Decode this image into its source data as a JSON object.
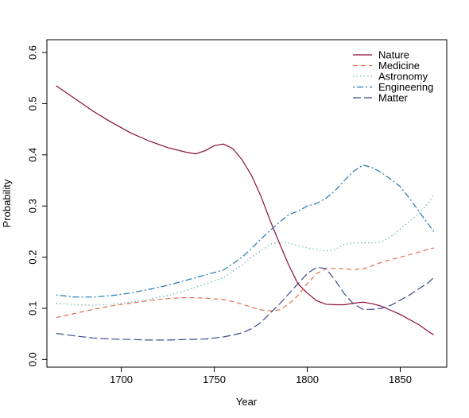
{
  "chart_data": {
    "type": "line",
    "title": "",
    "xlabel": "Year",
    "ylabel": "Probability",
    "xlim": [
      1660,
      1875
    ],
    "ylim": [
      -0.015,
      0.625
    ],
    "x_ticks": [
      1700,
      1750,
      1800,
      1850
    ],
    "y_ticks": [
      0.0,
      0.1,
      0.2,
      0.3,
      0.4,
      0.5,
      0.6
    ],
    "x_tick_labels": [
      "1700",
      "1750",
      "1800",
      "1850"
    ],
    "y_tick_labels": [
      "0.0",
      "0.1",
      "0.2",
      "0.3",
      "0.4",
      "0.5",
      "0.6"
    ],
    "grid": false,
    "legend_position": "top-right",
    "series": [
      {
        "name": "Nature",
        "color": "#8b0a3c",
        "dash": "solid",
        "x": [
          1665,
          1675,
          1685,
          1695,
          1705,
          1715,
          1725,
          1735,
          1740,
          1745,
          1750,
          1755,
          1760,
          1765,
          1770,
          1775,
          1780,
          1785,
          1790,
          1795,
          1800,
          1805,
          1810,
          1815,
          1820,
          1825,
          1830,
          1835,
          1840,
          1845,
          1850,
          1855,
          1860,
          1865,
          1868
        ],
        "y": [
          0.535,
          0.51,
          0.485,
          0.463,
          0.443,
          0.427,
          0.414,
          0.405,
          0.402,
          0.408,
          0.418,
          0.421,
          0.412,
          0.39,
          0.36,
          0.32,
          0.272,
          0.228,
          0.185,
          0.148,
          0.13,
          0.115,
          0.108,
          0.107,
          0.107,
          0.11,
          0.112,
          0.109,
          0.104,
          0.096,
          0.088,
          0.078,
          0.068,
          0.055,
          0.048
        ]
      },
      {
        "name": "Medicine",
        "color": "#e07050",
        "dash": "dashed",
        "x": [
          1665,
          1675,
          1685,
          1695,
          1705,
          1715,
          1725,
          1735,
          1745,
          1755,
          1760,
          1765,
          1770,
          1775,
          1780,
          1785,
          1790,
          1795,
          1800,
          1805,
          1810,
          1815,
          1820,
          1825,
          1830,
          1835,
          1840,
          1845,
          1850,
          1855,
          1860,
          1865,
          1868
        ],
        "y": [
          0.082,
          0.09,
          0.098,
          0.105,
          0.11,
          0.115,
          0.119,
          0.121,
          0.12,
          0.117,
          0.113,
          0.108,
          0.102,
          0.097,
          0.095,
          0.097,
          0.108,
          0.125,
          0.148,
          0.168,
          0.177,
          0.178,
          0.177,
          0.176,
          0.177,
          0.183,
          0.19,
          0.195,
          0.2,
          0.205,
          0.21,
          0.215,
          0.218
        ]
      },
      {
        "name": "Astronomy",
        "color": "#6ab8b0",
        "dash": "dotted",
        "x": [
          1665,
          1675,
          1685,
          1695,
          1705,
          1715,
          1725,
          1735,
          1745,
          1755,
          1765,
          1770,
          1775,
          1780,
          1785,
          1790,
          1795,
          1800,
          1805,
          1810,
          1815,
          1820,
          1825,
          1830,
          1835,
          1840,
          1845,
          1850,
          1855,
          1860,
          1865,
          1868
        ],
        "y": [
          0.11,
          0.107,
          0.106,
          0.108,
          0.112,
          0.118,
          0.125,
          0.135,
          0.147,
          0.16,
          0.185,
          0.2,
          0.212,
          0.225,
          0.23,
          0.228,
          0.222,
          0.218,
          0.215,
          0.212,
          0.215,
          0.225,
          0.228,
          0.228,
          0.228,
          0.23,
          0.24,
          0.255,
          0.27,
          0.285,
          0.305,
          0.322
        ]
      },
      {
        "name": "Engineering",
        "color": "#1f78b4",
        "dash": "dotdash",
        "x": [
          1665,
          1675,
          1685,
          1695,
          1705,
          1715,
          1725,
          1735,
          1745,
          1755,
          1765,
          1770,
          1775,
          1780,
          1785,
          1790,
          1795,
          1800,
          1805,
          1810,
          1815,
          1820,
          1825,
          1830,
          1835,
          1840,
          1845,
          1850,
          1855,
          1860,
          1865,
          1868
        ],
        "y": [
          0.126,
          0.122,
          0.122,
          0.125,
          0.13,
          0.137,
          0.145,
          0.155,
          0.165,
          0.175,
          0.2,
          0.217,
          0.235,
          0.252,
          0.268,
          0.283,
          0.29,
          0.3,
          0.305,
          0.315,
          0.33,
          0.35,
          0.368,
          0.38,
          0.375,
          0.365,
          0.352,
          0.338,
          0.315,
          0.29,
          0.265,
          0.25
        ]
      },
      {
        "name": "Matter",
        "color": "#3a4a8a",
        "dash": "longdash",
        "x": [
          1665,
          1675,
          1685,
          1695,
          1705,
          1715,
          1725,
          1735,
          1745,
          1755,
          1765,
          1770,
          1775,
          1780,
          1785,
          1790,
          1795,
          1800,
          1805,
          1810,
          1815,
          1820,
          1825,
          1830,
          1835,
          1840,
          1845,
          1850,
          1855,
          1860,
          1865,
          1868
        ],
        "y": [
          0.051,
          0.046,
          0.042,
          0.04,
          0.039,
          0.038,
          0.038,
          0.039,
          0.04,
          0.044,
          0.052,
          0.06,
          0.072,
          0.09,
          0.108,
          0.128,
          0.148,
          0.168,
          0.18,
          0.178,
          0.155,
          0.128,
          0.108,
          0.098,
          0.098,
          0.1,
          0.106,
          0.116,
          0.126,
          0.138,
          0.15,
          0.16
        ]
      }
    ]
  }
}
